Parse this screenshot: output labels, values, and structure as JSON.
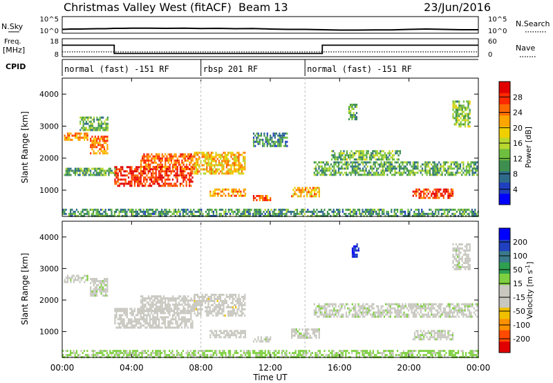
{
  "chart_data": [
    {
      "type": "line",
      "panel": "noise",
      "title": "Christmas Valley West (fitACF)",
      "beam": "Beam 13",
      "date": "23/Jun/2016",
      "left_label": "N.Sky",
      "right_label": "N.Search",
      "left_ticks": [
        "10^5",
        "10^0"
      ],
      "right_ticks": [
        "10^5",
        "10^0"
      ],
      "x_hours": [
        0,
        0.5,
        1,
        1.5,
        2,
        2.5,
        3,
        3.5,
        4,
        5,
        6,
        7,
        8,
        9,
        10,
        11,
        12,
        13,
        14,
        15,
        16,
        17,
        18,
        19,
        20,
        21,
        22,
        23,
        24
      ],
      "sky_values": [
        0.45,
        0.5,
        0.5,
        0.52,
        0.55,
        0.55,
        0.6,
        0.6,
        0.62,
        0.62,
        0.6,
        0.62,
        0.58,
        0.6,
        0.55,
        0.58,
        0.5,
        0.45,
        0.45,
        0.4,
        0.35,
        0.35,
        0.38,
        0.38,
        0.45,
        0.5,
        0.45,
        0.4,
        0.4
      ]
    },
    {
      "type": "line",
      "panel": "frequency",
      "left_label": "Freq.",
      "left_unit": "[MHz]",
      "right_label": "Nave",
      "left_ticks": [
        "18",
        "8"
      ],
      "right_ticks": [
        "60",
        "0"
      ],
      "freq_segments": [
        {
          "start": 0,
          "end": 3,
          "value_mhz": 14.5
        },
        {
          "start": 3,
          "end": 15,
          "value_mhz": 9.5
        },
        {
          "start": 15,
          "end": 24,
          "value_mhz": 14.5
        }
      ],
      "nave_value": 15
    },
    {
      "type": "table",
      "panel": "cpid",
      "label": "CPID",
      "segments": [
        {
          "start": 0,
          "end": 8,
          "label": "normal (fast) -151 RF"
        },
        {
          "start": 8,
          "end": 14,
          "label": "rbsp 201 RF"
        },
        {
          "start": 14,
          "end": 24,
          "label": "normal (fast) -151 RF"
        }
      ]
    },
    {
      "type": "heatmap",
      "panel": "power",
      "ylabel": "Slant Range [km]",
      "ylim": [
        180,
        4500
      ],
      "y_ticks": [
        1000,
        2000,
        3000,
        4000
      ],
      "xlim": [
        0,
        24
      ],
      "colorbar_label": "Power [dB]",
      "colorbar_ticks": [
        4,
        8,
        12,
        16,
        20,
        24,
        28
      ],
      "colorbar_colors": [
        "#0000ff",
        "#1f3fbf",
        "#2e6b8a",
        "#3e8f4f",
        "#6fbf3f",
        "#b9d82f",
        "#f0d000",
        "#ffa500",
        "#ff6a00",
        "#ff2a00",
        "#e00000"
      ],
      "clusters": [
        {
          "t0": 0.1,
          "t1": 1.5,
          "r0": 2550,
          "r1": 2800,
          "level": 22
        },
        {
          "t0": 1.6,
          "t1": 2.6,
          "r0": 2150,
          "r1": 2700,
          "level": 23
        },
        {
          "t0": 3.0,
          "t1": 7.5,
          "r0": 1150,
          "r1": 1750,
          "level": 27
        },
        {
          "t0": 4.5,
          "t1": 7.6,
          "r0": 1650,
          "r1": 2150,
          "level": 24
        },
        {
          "t0": 7.6,
          "t1": 10.5,
          "r0": 1500,
          "r1": 2200,
          "level": 20
        },
        {
          "t0": 8.5,
          "t1": 10.6,
          "r0": 850,
          "r1": 1050,
          "level": 22
        },
        {
          "t0": 11.0,
          "t1": 12.0,
          "r0": 700,
          "r1": 850,
          "level": 24
        },
        {
          "t0": 13.2,
          "t1": 14.8,
          "r0": 800,
          "r1": 1100,
          "level": 21
        },
        {
          "t0": 20.2,
          "t1": 22.5,
          "r0": 750,
          "r1": 1050,
          "level": 26
        },
        {
          "t0": 0.1,
          "t1": 3.0,
          "r0": 1450,
          "r1": 1700,
          "level": 12
        },
        {
          "t0": 14.5,
          "t1": 23.9,
          "r0": 1450,
          "r1": 1900,
          "level": 12
        },
        {
          "t0": 15.5,
          "t1": 19.5,
          "r0": 1950,
          "r1": 2250,
          "level": 13
        },
        {
          "t0": 1.0,
          "t1": 2.6,
          "r0": 2900,
          "r1": 3300,
          "level": 12
        },
        {
          "t0": 22.5,
          "t1": 23.5,
          "r0": 3000,
          "r1": 3800,
          "level": 14
        },
        {
          "t0": 16.5,
          "t1": 17.0,
          "r0": 3200,
          "r1": 3700,
          "level": 13
        },
        {
          "t0": 11.0,
          "t1": 13.0,
          "r0": 2400,
          "r1": 2800,
          "level": 10
        },
        {
          "t0": 0.0,
          "t1": 24.0,
          "r0": 180,
          "r1": 420,
          "level": 11
        }
      ]
    },
    {
      "type": "heatmap",
      "panel": "velocity",
      "ylabel": "Slant Range [km]",
      "ylim": [
        180,
        4500
      ],
      "y_ticks": [
        1000,
        2000,
        3000,
        4000
      ],
      "xlim": [
        0,
        24
      ],
      "xlabel": "Time UT",
      "x_ticks": [
        "00:00",
        "04:00",
        "08:00",
        "12:00",
        "16:00",
        "20:00",
        "00:00"
      ],
      "colorbar_label": "Velocity [m s",
      "colorbar_unit_sup": "-1",
      "colorbar_unit_close": "]",
      "colorbar_ticks": [
        -200,
        -100,
        -50,
        -15,
        15,
        50,
        100,
        200
      ],
      "colorbar_colors": [
        "#e00000",
        "#ff4a00",
        "#ff9000",
        "#f0c000",
        "#c8c8c0",
        "#c8c8c0",
        "#7fd040",
        "#2ea050",
        "#3a7a8a",
        "#2040c0",
        "#0000ff"
      ],
      "clusters": [
        {
          "t0": 0.1,
          "t1": 1.5,
          "r0": 2550,
          "r1": 2800,
          "vel": 0
        },
        {
          "t0": 1.6,
          "t1": 2.6,
          "r0": 2150,
          "r1": 2700,
          "vel": 0
        },
        {
          "t0": 3.0,
          "t1": 7.5,
          "r0": 1150,
          "r1": 1750,
          "vel": -30
        },
        {
          "t0": 4.5,
          "t1": 7.6,
          "r0": 1650,
          "r1": 2150,
          "vel": -20
        },
        {
          "t0": 7.6,
          "t1": 10.5,
          "r0": 1500,
          "r1": 2200,
          "vel": -40
        },
        {
          "t0": 8.5,
          "t1": 10.6,
          "r0": 850,
          "r1": 1050,
          "vel": -25
        },
        {
          "t0": 11.0,
          "t1": 12.0,
          "r0": 700,
          "r1": 850,
          "vel": 0
        },
        {
          "t0": 13.2,
          "t1": 14.8,
          "r0": 800,
          "r1": 1100,
          "vel": 0
        },
        {
          "t0": 20.2,
          "t1": 22.5,
          "r0": 750,
          "r1": 1050,
          "vel": 0
        },
        {
          "t0": 14.5,
          "t1": 23.9,
          "r0": 1450,
          "r1": 1900,
          "vel": 0
        },
        {
          "t0": 16.7,
          "t1": 17.1,
          "r0": 3400,
          "r1": 3800,
          "vel": 200
        },
        {
          "t0": 22.5,
          "t1": 23.5,
          "r0": 3000,
          "r1": 3800,
          "vel": 0
        },
        {
          "t0": 0.0,
          "t1": 24.0,
          "r0": 180,
          "r1": 420,
          "vel": 35
        }
      ]
    }
  ]
}
